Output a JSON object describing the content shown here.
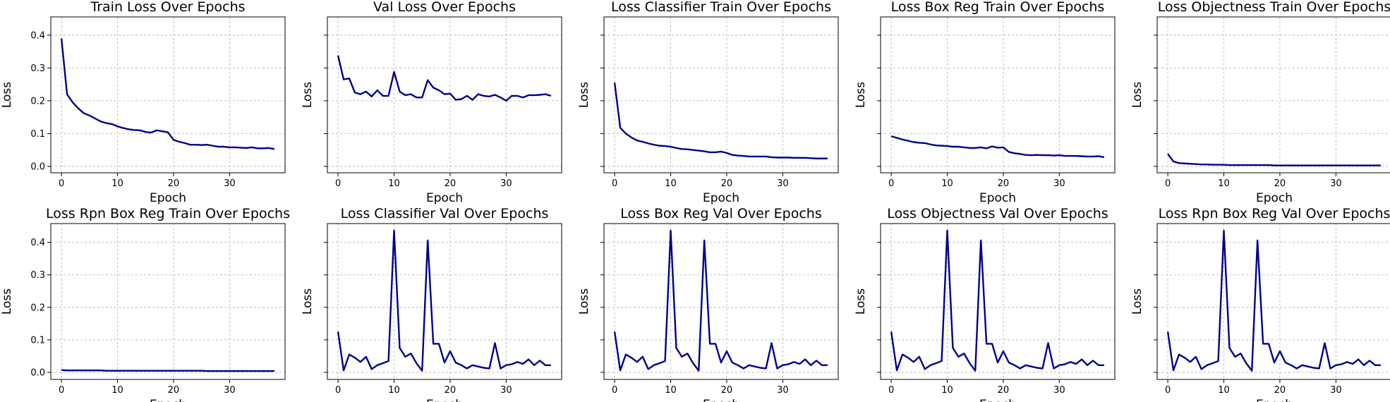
{
  "chart_data": [
    {
      "type": "line",
      "title": "Train Loss Over Epochs",
      "xlabel": "Epoch",
      "ylabel": "Loss",
      "xlim": [
        -1.9,
        39.9
      ],
      "ylim": [
        -0.0195,
        0.4555
      ],
      "xticks": [
        0,
        10,
        20,
        30
      ],
      "yticks": [
        "0.0",
        "0.1",
        "0.2",
        "0.3",
        "0.4"
      ],
      "yticklabels_visible": true,
      "grid": true,
      "line_color": "#00008b",
      "x": [
        0,
        1,
        2,
        3,
        4,
        5,
        6,
        7,
        8,
        9,
        10,
        11,
        12,
        13,
        14,
        15,
        16,
        17,
        18,
        19,
        20,
        21,
        22,
        23,
        24,
        25,
        26,
        27,
        28,
        29,
        30,
        31,
        32,
        33,
        34,
        35,
        36,
        37,
        38
      ],
      "y": [
        0.39,
        0.22,
        0.195,
        0.177,
        0.162,
        0.155,
        0.146,
        0.137,
        0.132,
        0.129,
        0.122,
        0.117,
        0.113,
        0.111,
        0.11,
        0.105,
        0.103,
        0.11,
        0.107,
        0.104,
        0.081,
        0.075,
        0.071,
        0.066,
        0.066,
        0.065,
        0.066,
        0.063,
        0.06,
        0.06,
        0.058,
        0.058,
        0.057,
        0.056,
        0.058,
        0.055,
        0.055,
        0.056,
        0.053
      ]
    },
    {
      "type": "line",
      "title": "Val Loss Over Epochs",
      "xlabel": "Epoch",
      "ylabel": "Loss",
      "xlim": [
        -1.9,
        39.9
      ],
      "ylim": [
        -0.0195,
        0.4555
      ],
      "xticks": [
        0,
        10,
        20,
        30
      ],
      "yticks": [
        "0.0",
        "0.1",
        "0.2",
        "0.3",
        "0.4"
      ],
      "yticklabels_visible": false,
      "grid": true,
      "line_color": "#00008b",
      "x": [
        0,
        1,
        2,
        3,
        4,
        5,
        6,
        7,
        8,
        9,
        10,
        11,
        12,
        13,
        14,
        15,
        16,
        17,
        18,
        19,
        20,
        21,
        22,
        23,
        24,
        25,
        26,
        27,
        28,
        29,
        30,
        31,
        32,
        33,
        34,
        35,
        36,
        37,
        38
      ],
      "y": [
        0.338,
        0.265,
        0.268,
        0.225,
        0.22,
        0.228,
        0.213,
        0.232,
        0.215,
        0.215,
        0.288,
        0.228,
        0.217,
        0.22,
        0.21,
        0.21,
        0.263,
        0.24,
        0.232,
        0.22,
        0.222,
        0.203,
        0.205,
        0.215,
        0.203,
        0.22,
        0.215,
        0.213,
        0.218,
        0.21,
        0.2,
        0.215,
        0.215,
        0.21,
        0.217,
        0.217,
        0.218,
        0.22,
        0.215
      ]
    },
    {
      "type": "line",
      "title": "Loss Classifier Train Over Epochs",
      "xlabel": "Epoch",
      "ylabel": "Loss",
      "xlim": [
        -1.9,
        39.9
      ],
      "ylim": [
        -0.0195,
        0.4555
      ],
      "xticks": [
        0,
        10,
        20,
        30
      ],
      "yticks": [
        "0.0",
        "0.1",
        "0.2",
        "0.3",
        "0.4"
      ],
      "yticklabels_visible": false,
      "grid": true,
      "line_color": "#00008b",
      "x": [
        0,
        1,
        2,
        3,
        4,
        5,
        6,
        7,
        8,
        9,
        10,
        11,
        12,
        13,
        14,
        15,
        16,
        17,
        18,
        19,
        20,
        21,
        22,
        23,
        24,
        25,
        26,
        27,
        28,
        29,
        30,
        31,
        32,
        33,
        34,
        35,
        36,
        37,
        38
      ],
      "y": [
        0.255,
        0.118,
        0.1,
        0.088,
        0.079,
        0.075,
        0.07,
        0.066,
        0.063,
        0.062,
        0.06,
        0.056,
        0.053,
        0.052,
        0.05,
        0.048,
        0.046,
        0.043,
        0.043,
        0.045,
        0.041,
        0.035,
        0.033,
        0.032,
        0.03,
        0.03,
        0.03,
        0.03,
        0.028,
        0.027,
        0.027,
        0.027,
        0.026,
        0.026,
        0.026,
        0.025,
        0.024,
        0.024,
        0.024
      ]
    },
    {
      "type": "line",
      "title": "Loss Box Reg Train Over Epochs",
      "xlabel": "Epoch",
      "ylabel": "Loss",
      "xlim": [
        -1.9,
        39.9
      ],
      "ylim": [
        -0.0195,
        0.4555
      ],
      "xticks": [
        0,
        10,
        20,
        30
      ],
      "yticks": [
        "0.0",
        "0.1",
        "0.2",
        "0.3",
        "0.4"
      ],
      "yticklabels_visible": false,
      "grid": true,
      "line_color": "#00008b",
      "x": [
        0,
        1,
        2,
        3,
        4,
        5,
        6,
        7,
        8,
        9,
        10,
        11,
        12,
        13,
        14,
        15,
        16,
        17,
        18,
        19,
        20,
        21,
        22,
        23,
        24,
        25,
        26,
        27,
        28,
        29,
        30,
        31,
        32,
        33,
        34,
        35,
        36,
        37,
        38
      ],
      "y": [
        0.092,
        0.087,
        0.082,
        0.078,
        0.074,
        0.072,
        0.071,
        0.067,
        0.064,
        0.063,
        0.062,
        0.06,
        0.06,
        0.058,
        0.056,
        0.056,
        0.058,
        0.055,
        0.061,
        0.057,
        0.058,
        0.044,
        0.04,
        0.038,
        0.035,
        0.034,
        0.035,
        0.034,
        0.034,
        0.033,
        0.034,
        0.032,
        0.032,
        0.032,
        0.031,
        0.03,
        0.03,
        0.031,
        0.028
      ]
    },
    {
      "type": "line",
      "title": "Loss Objectness Train Over Epochs",
      "xlabel": "Epoch",
      "ylabel": "Loss",
      "xlim": [
        -1.9,
        39.9
      ],
      "ylim": [
        -0.0195,
        0.4555
      ],
      "xticks": [
        0,
        10,
        20,
        30
      ],
      "yticks": [
        "0.0",
        "0.1",
        "0.2",
        "0.3",
        "0.4"
      ],
      "yticklabels_visible": false,
      "grid": true,
      "line_color": "#00008b",
      "x": [
        0,
        1,
        2,
        3,
        4,
        5,
        6,
        7,
        8,
        9,
        10,
        11,
        12,
        13,
        14,
        15,
        16,
        17,
        18,
        19,
        20,
        21,
        22,
        23,
        24,
        25,
        26,
        27,
        28,
        29,
        30,
        31,
        32,
        33,
        34,
        35,
        36,
        37,
        38
      ],
      "y": [
        0.038,
        0.015,
        0.01,
        0.009,
        0.008,
        0.007,
        0.006,
        0.006,
        0.005,
        0.005,
        0.005,
        0.004,
        0.004,
        0.004,
        0.004,
        0.004,
        0.004,
        0.004,
        0.004,
        0.003,
        0.003,
        0.003,
        0.003,
        0.003,
        0.003,
        0.003,
        0.003,
        0.003,
        0.003,
        0.003,
        0.003,
        0.003,
        0.003,
        0.003,
        0.003,
        0.003,
        0.003,
        0.003,
        0.003
      ]
    },
    {
      "type": "line",
      "title": "Loss Rpn Box Reg Train Over Epochs",
      "xlabel": "Epoch",
      "ylabel": "Loss",
      "xlim": [
        -1.9,
        39.9
      ],
      "ylim": [
        -0.0218,
        0.4578
      ],
      "xticks": [
        0,
        10,
        20,
        30
      ],
      "yticks": [
        "0.0",
        "0.1",
        "0.2",
        "0.3",
        "0.4"
      ],
      "yticklabels_visible": true,
      "grid": true,
      "line_color": "#00008b",
      "x": [
        0,
        1,
        2,
        3,
        4,
        5,
        6,
        7,
        8,
        9,
        10,
        11,
        12,
        13,
        14,
        15,
        16,
        17,
        18,
        19,
        20,
        21,
        22,
        23,
        24,
        25,
        26,
        27,
        28,
        29,
        30,
        31,
        32,
        33,
        34,
        35,
        36,
        37,
        38
      ],
      "y": [
        0.007,
        0.006,
        0.006,
        0.006,
        0.006,
        0.006,
        0.006,
        0.006,
        0.005,
        0.005,
        0.005,
        0.005,
        0.005,
        0.005,
        0.005,
        0.005,
        0.005,
        0.005,
        0.005,
        0.005,
        0.005,
        0.005,
        0.005,
        0.005,
        0.005,
        0.005,
        0.004,
        0.004,
        0.004,
        0.004,
        0.004,
        0.004,
        0.004,
        0.004,
        0.004,
        0.004,
        0.004,
        0.004,
        0.004
      ]
    },
    {
      "type": "line",
      "title": "Loss Classifier Val Over Epochs",
      "xlabel": "Epoch",
      "ylabel": "Loss",
      "xlim": [
        -1.9,
        39.9
      ],
      "ylim": [
        -0.0218,
        0.4578
      ],
      "xticks": [
        0,
        10,
        20,
        30
      ],
      "yticks": [
        "0.0",
        "0.1",
        "0.2",
        "0.3",
        "0.4"
      ],
      "yticklabels_visible": false,
      "grid": true,
      "line_color": "#00008b",
      "x": [
        0,
        1,
        2,
        3,
        4,
        5,
        6,
        7,
        8,
        9,
        10,
        11,
        12,
        13,
        14,
        15,
        16,
        17,
        18,
        19,
        20,
        21,
        22,
        23,
        24,
        25,
        26,
        27,
        28,
        29,
        30,
        31,
        32,
        33,
        34,
        35,
        36,
        37,
        38
      ],
      "y": [
        0.125,
        0.006,
        0.055,
        0.045,
        0.032,
        0.048,
        0.01,
        0.022,
        0.028,
        0.035,
        0.436,
        0.075,
        0.048,
        0.058,
        0.028,
        0.005,
        0.406,
        0.088,
        0.088,
        0.03,
        0.065,
        0.03,
        0.022,
        0.012,
        0.022,
        0.018,
        0.014,
        0.012,
        0.09,
        0.012,
        0.022,
        0.025,
        0.032,
        0.026,
        0.04,
        0.022,
        0.036,
        0.022,
        0.022
      ]
    },
    {
      "type": "line",
      "title": "Loss Box Reg Val Over Epochs",
      "xlabel": "Epoch",
      "ylabel": "Loss",
      "xlim": [
        -1.9,
        39.9
      ],
      "ylim": [
        -0.0218,
        0.4578
      ],
      "xticks": [
        0,
        10,
        20,
        30
      ],
      "yticks": [
        "0.0",
        "0.1",
        "0.2",
        "0.3",
        "0.4"
      ],
      "yticklabels_visible": false,
      "grid": true,
      "line_color": "#00008b",
      "x": [
        0,
        1,
        2,
        3,
        4,
        5,
        6,
        7,
        8,
        9,
        10,
        11,
        12,
        13,
        14,
        15,
        16,
        17,
        18,
        19,
        20,
        21,
        22,
        23,
        24,
        25,
        26,
        27,
        28,
        29,
        30,
        31,
        32,
        33,
        34,
        35,
        36,
        37,
        38
      ],
      "y": [
        0.125,
        0.006,
        0.055,
        0.045,
        0.032,
        0.048,
        0.01,
        0.022,
        0.028,
        0.035,
        0.436,
        0.075,
        0.048,
        0.058,
        0.028,
        0.005,
        0.406,
        0.088,
        0.088,
        0.03,
        0.065,
        0.03,
        0.022,
        0.012,
        0.022,
        0.018,
        0.014,
        0.012,
        0.09,
        0.012,
        0.022,
        0.025,
        0.032,
        0.026,
        0.04,
        0.022,
        0.036,
        0.022,
        0.022
      ]
    },
    {
      "type": "line",
      "title": "Loss Objectness Val Over Epochs",
      "xlabel": "Epoch",
      "ylabel": "Loss",
      "xlim": [
        -1.9,
        39.9
      ],
      "ylim": [
        -0.0218,
        0.4578
      ],
      "xticks": [
        0,
        10,
        20,
        30
      ],
      "yticks": [
        "0.0",
        "0.1",
        "0.2",
        "0.3",
        "0.4"
      ],
      "yticklabels_visible": false,
      "grid": true,
      "line_color": "#00008b",
      "x": [
        0,
        1,
        2,
        3,
        4,
        5,
        6,
        7,
        8,
        9,
        10,
        11,
        12,
        13,
        14,
        15,
        16,
        17,
        18,
        19,
        20,
        21,
        22,
        23,
        24,
        25,
        26,
        27,
        28,
        29,
        30,
        31,
        32,
        33,
        34,
        35,
        36,
        37,
        38
      ],
      "y": [
        0.125,
        0.006,
        0.055,
        0.045,
        0.032,
        0.048,
        0.01,
        0.022,
        0.028,
        0.035,
        0.436,
        0.075,
        0.048,
        0.058,
        0.028,
        0.005,
        0.406,
        0.088,
        0.088,
        0.03,
        0.065,
        0.03,
        0.022,
        0.012,
        0.022,
        0.018,
        0.014,
        0.012,
        0.09,
        0.012,
        0.022,
        0.025,
        0.032,
        0.026,
        0.04,
        0.022,
        0.036,
        0.022,
        0.022
      ]
    },
    {
      "type": "line",
      "title": "Loss Rpn Box Reg Val Over Epochs",
      "xlabel": "Epoch",
      "ylabel": "Loss",
      "xlim": [
        -1.9,
        39.9
      ],
      "ylim": [
        -0.0218,
        0.4578
      ],
      "xticks": [
        0,
        10,
        20,
        30
      ],
      "yticks": [
        "0.0",
        "0.1",
        "0.2",
        "0.3",
        "0.4"
      ],
      "yticklabels_visible": false,
      "grid": true,
      "line_color": "#00008b",
      "x": [
        0,
        1,
        2,
        3,
        4,
        5,
        6,
        7,
        8,
        9,
        10,
        11,
        12,
        13,
        14,
        15,
        16,
        17,
        18,
        19,
        20,
        21,
        22,
        23,
        24,
        25,
        26,
        27,
        28,
        29,
        30,
        31,
        32,
        33,
        34,
        35,
        36,
        37,
        38
      ],
      "y": [
        0.125,
        0.006,
        0.055,
        0.045,
        0.032,
        0.048,
        0.01,
        0.022,
        0.028,
        0.035,
        0.436,
        0.075,
        0.048,
        0.058,
        0.028,
        0.005,
        0.406,
        0.088,
        0.088,
        0.03,
        0.065,
        0.03,
        0.022,
        0.012,
        0.022,
        0.018,
        0.014,
        0.012,
        0.09,
        0.012,
        0.022,
        0.025,
        0.032,
        0.026,
        0.04,
        0.022,
        0.036,
        0.022,
        0.022
      ]
    }
  ]
}
